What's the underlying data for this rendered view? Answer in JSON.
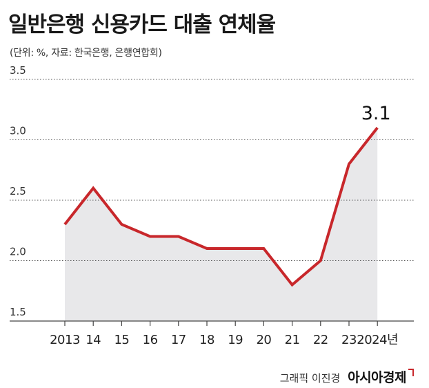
{
  "title": "일반은행 신용카드 대출 연체율",
  "subtitle": "(단위: %, 자료: 한국은행, 은행연합회)",
  "credit": {
    "author": "그래픽 이진경",
    "brand": "아시아경제"
  },
  "colors": {
    "line": "#c8272b",
    "area": "#e8e8ea",
    "grid": "#555555"
  },
  "chart_data": {
    "type": "area",
    "title": "일반은행 신용카드 대출 연체율",
    "subtitle": "(단위: %, 자료: 한국은행, 은행연합회)",
    "categories": [
      "2013",
      "14",
      "15",
      "16",
      "17",
      "18",
      "19",
      "20",
      "21",
      "22",
      "23",
      "2024년"
    ],
    "values": [
      2.3,
      2.6,
      2.3,
      2.2,
      2.2,
      2.1,
      2.1,
      2.1,
      1.8,
      2.0,
      2.8,
      3.1
    ],
    "yticks": [
      "3.5",
      "3.0",
      "2.5",
      "2.0",
      "1.5"
    ],
    "ylim": [
      1.5,
      3.5
    ],
    "data_labels": [
      {
        "index": 11,
        "text": "3.1"
      }
    ],
    "grid": "dotted horizontal",
    "legend": "none"
  }
}
